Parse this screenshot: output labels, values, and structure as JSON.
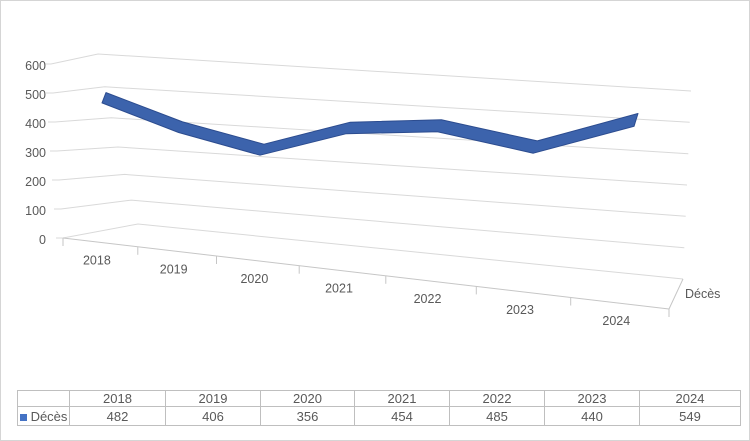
{
  "chart_data": {
    "type": "line",
    "subtype": "3d-ribbon",
    "series_name": "Décès",
    "categories": [
      "2018",
      "2019",
      "2020",
      "2021",
      "2022",
      "2023",
      "2024"
    ],
    "values": [
      482,
      406,
      356,
      454,
      485,
      440,
      549
    ],
    "title": "",
    "xlabel": "",
    "ylabel": "",
    "ylim": [
      0,
      600
    ],
    "ytick_step": 100,
    "ytick_labels": [
      "0",
      "100",
      "200",
      "300",
      "400",
      "500",
      "600"
    ],
    "series_axis_label": "Décès",
    "legend_position": "table-bottom",
    "grid": true,
    "colors": {
      "ribbon_fill": "#3C63AC",
      "ribbon_edge": "#2C4C8F",
      "gridline": "#D9D9D9",
      "axis_line": "#C6C6C6",
      "label_text": "#595959",
      "legend_swatch": "#4472C4",
      "table_border": "#BFBFBF",
      "frame_border": "#D5D5D5"
    }
  }
}
